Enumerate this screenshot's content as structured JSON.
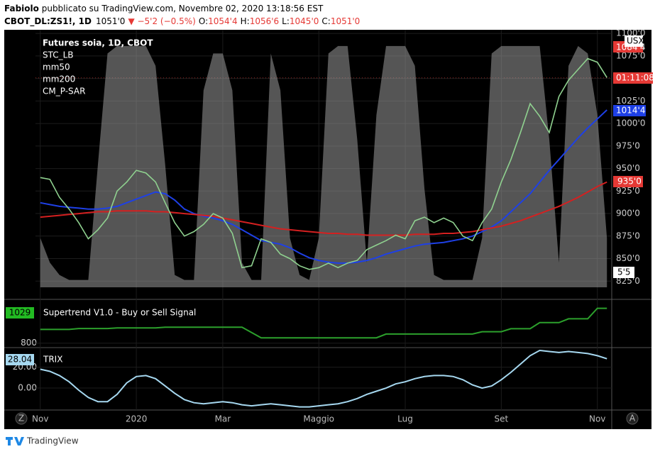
{
  "header": {
    "author": "Fabiolo",
    "published": " pubblicato su TradingView.com, Novembre 02, 2020 13:18:56 EST",
    "symbol": "CBOT_DL:ZS1!, 1D",
    "last": "1051'0",
    "change": "▼ −5'2 (−0.5%)",
    "ohlc": [
      {
        "label": "O:",
        "value": "1054'4"
      },
      {
        "label": "H:",
        "value": "1056'6"
      },
      {
        "label": "L:",
        "value": "1045'0"
      },
      {
        "label": "C:",
        "value": "1051'0"
      }
    ]
  },
  "price_scale_badges": [
    {
      "text": "1084'4",
      "color": "#e53935"
    },
    {
      "text": "USX",
      "color": "#ffffff"
    },
    {
      "text": "01:11:08",
      "color": "#e53935"
    },
    {
      "text": "1014'4",
      "color": "#1e40e6"
    },
    {
      "text": "935'0",
      "color": "#e53935"
    },
    {
      "text": "5'5",
      "color": "#ffffff"
    }
  ],
  "ui": {
    "zoom_button": "Z",
    "auto_button": "A",
    "logo": "TradingView"
  },
  "chart_data": [
    {
      "type": "line",
      "title": "Futures soia, 1D, CBOT",
      "color": "#8fd18f",
      "categories": [
        "Nov",
        null,
        null,
        null,
        null,
        null,
        null,
        null,
        null,
        null,
        "2020",
        null,
        null,
        null,
        null,
        null,
        null,
        null,
        null,
        "Mar",
        null,
        null,
        null,
        null,
        null,
        null,
        null,
        null,
        null,
        "Maggio",
        null,
        null,
        null,
        null,
        null,
        null,
        null,
        null,
        "Lug",
        null,
        null,
        null,
        null,
        null,
        null,
        null,
        null,
        null,
        "Set",
        null,
        null,
        null,
        null,
        null,
        null,
        null,
        null,
        null,
        "Nov",
        null
      ],
      "values": [
        940,
        938,
        918,
        905,
        890,
        872,
        882,
        895,
        925,
        935,
        948,
        945,
        935,
        912,
        890,
        875,
        880,
        888,
        900,
        895,
        878,
        840,
        842,
        872,
        868,
        855,
        850,
        842,
        838,
        840,
        845,
        840,
        845,
        848,
        860,
        865,
        870,
        876,
        872,
        892,
        896,
        890,
        895,
        890,
        875,
        870,
        890,
        905,
        935,
        960,
        990,
        1022,
        1008,
        990,
        1030,
        1048,
        1060,
        1072,
        1068,
        1051
      ],
      "ylim": [
        815,
        1104
      ],
      "yticks": [
        {
          "value": 825,
          "label": "825'0"
        },
        {
          "value": 850,
          "label": "850'0"
        },
        {
          "value": 875,
          "label": "875'0"
        },
        {
          "value": 900,
          "label": "900'0"
        },
        {
          "value": 925,
          "label": "925'0"
        },
        {
          "value": 950,
          "label": "950'0"
        },
        {
          "value": 975,
          "label": "975'0"
        },
        {
          "value": 1000,
          "label": "1000'0"
        },
        {
          "value": 1025,
          "label": "1025'0"
        },
        {
          "value": 1050,
          "label": "1050'0"
        },
        {
          "value": 1075,
          "label": "1075'0"
        },
        {
          "value": 1100,
          "label": "1100'0"
        }
      ],
      "y2lim": [
        0,
        100
      ],
      "grid": true,
      "legend_extra": "CM_P-SAR",
      "series": [
        {
          "name": "STC_LB",
          "color": "#9a9a9a",
          "axis": "y2",
          "kind": "area",
          "values": [
            20,
            10,
            5,
            3,
            3,
            3,
            50,
            95,
            98,
            98,
            98,
            98,
            90,
            50,
            5,
            3,
            3,
            80,
            95,
            95,
            80,
            10,
            3,
            3,
            95,
            80,
            20,
            5,
            3,
            20,
            95,
            98,
            98,
            60,
            10,
            70,
            98,
            98,
            98,
            90,
            40,
            5,
            3,
            3,
            3,
            3,
            20,
            95,
            98,
            98,
            98,
            98,
            98,
            60,
            10,
            90,
            98,
            95,
            70,
            20
          ]
        },
        {
          "name": "mm50",
          "color": "#1e40e6",
          "kind": "line",
          "values": [
            912,
            910,
            908,
            907,
            906,
            905,
            905,
            906,
            908,
            912,
            916,
            920,
            924,
            922,
            915,
            905,
            900,
            897,
            895,
            892,
            888,
            882,
            876,
            870,
            868,
            866,
            862,
            856,
            851,
            848,
            846,
            845,
            845,
            846,
            848,
            851,
            855,
            858,
            861,
            864,
            866,
            867,
            868,
            870,
            872,
            875,
            880,
            885,
            892,
            902,
            912,
            922,
            935,
            948,
            960,
            972,
            984,
            995,
            1005,
            1015
          ]
        },
        {
          "name": "mm200",
          "color": "#d42020",
          "kind": "line",
          "values": [
            896,
            897,
            898,
            899,
            900,
            901,
            902,
            902,
            903,
            903,
            903,
            903,
            902,
            902,
            901,
            900,
            899,
            898,
            897,
            895,
            893,
            891,
            889,
            887,
            885,
            883,
            882,
            881,
            880,
            879,
            878,
            878,
            877,
            877,
            876,
            876,
            876,
            876,
            876,
            877,
            877,
            877,
            878,
            878,
            879,
            880,
            882,
            884,
            886,
            889,
            892,
            896,
            900,
            904,
            908,
            913,
            918,
            924,
            930,
            935
          ]
        }
      ]
    },
    {
      "type": "line",
      "title": "Supertrend V1.0 - Buy or Sell Signal",
      "color": "#2ca02c",
      "badge_color": "#22bb22",
      "values": [
        890,
        890,
        890,
        890,
        896,
        896,
        896,
        896,
        900,
        900,
        900,
        900,
        900,
        905,
        905,
        905,
        905,
        905,
        905,
        905,
        905,
        905,
        870,
        835,
        835,
        835,
        835,
        835,
        835,
        835,
        835,
        835,
        835,
        835,
        835,
        835,
        860,
        860,
        860,
        860,
        860,
        860,
        860,
        860,
        860,
        860,
        875,
        875,
        875,
        895,
        895,
        895,
        935,
        935,
        935,
        960,
        960,
        960,
        1029,
        1029
      ],
      "ylim": [
        780,
        1060
      ],
      "yticks": [
        800
      ]
    },
    {
      "type": "line",
      "title": "TRIX",
      "color": "#a6d8f0",
      "badge_color": "#a6d8f0",
      "values": [
        18,
        16,
        12,
        6,
        -2,
        -9,
        -13,
        -13,
        -6,
        5,
        11,
        12,
        9,
        2,
        -5,
        -11,
        -14,
        -15,
        -14,
        -13,
        -14,
        -16,
        -17,
        -16,
        -15,
        -16,
        -17,
        -18,
        -18,
        -17,
        -16,
        -15,
        -13,
        -10,
        -6,
        -3,
        0,
        4,
        6,
        9,
        11,
        12,
        12,
        11,
        8,
        3,
        0,
        2,
        8,
        15,
        23,
        31,
        36,
        35,
        34,
        35,
        34,
        33,
        31,
        28.04
      ],
      "ylim": [
        -21,
        36
      ],
      "yticks": [
        {
          "value": 20,
          "label": "20.00"
        },
        {
          "value": 0,
          "label": "0.00"
        }
      ]
    }
  ]
}
